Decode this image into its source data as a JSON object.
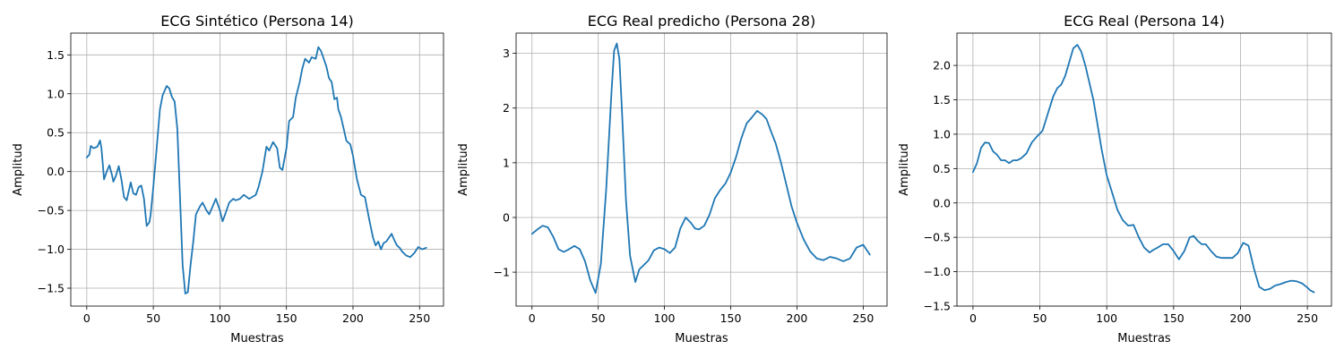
{
  "chart_data": [
    {
      "type": "line",
      "title": "ECG Sintético (Persona 14)",
      "xlabel": "Muestras",
      "ylabel": "Amplitud",
      "xlim": [
        -12,
        268
      ],
      "ylim": [
        -1.73,
        1.78
      ],
      "xticks": [
        0,
        50,
        100,
        150,
        200,
        250
      ],
      "yticks": [
        -1.5,
        -1.0,
        -0.5,
        0.0,
        0.5,
        1.0,
        1.5
      ],
      "ytick_labels": [
        "−1.5",
        "−1.0",
        "−0.5",
        "0.0",
        "0.5",
        "1.0",
        "1.5"
      ],
      "grid": true,
      "color": "#1f77b4",
      "series": [
        {
          "x": [
            0,
            2,
            3,
            5,
            8,
            10,
            11,
            12,
            13,
            15,
            17,
            19,
            20,
            22,
            24,
            26,
            28,
            30,
            33,
            35,
            37,
            39,
            41,
            43,
            45,
            47,
            48,
            50,
            52,
            55,
            57,
            60,
            62,
            64,
            66,
            68,
            70,
            72,
            74,
            76,
            78,
            80,
            82,
            85,
            87,
            90,
            92,
            94,
            97,
            100,
            102,
            104,
            107,
            110,
            112,
            115,
            118,
            122,
            125,
            127,
            129,
            132,
            135,
            137,
            140,
            143,
            145,
            147,
            150,
            152,
            155,
            157,
            160,
            162,
            164,
            167,
            169,
            172,
            174,
            176,
            178,
            180,
            182,
            184,
            186,
            188,
            189,
            191,
            193,
            195,
            196,
            198,
            200,
            203,
            206,
            209,
            212,
            215,
            217,
            219,
            221,
            223,
            225,
            227,
            229,
            231,
            233,
            235,
            237,
            240,
            243,
            246,
            249,
            252,
            255
          ],
          "y": [
            0.18,
            0.22,
            0.33,
            0.3,
            0.32,
            0.4,
            0.3,
            0.1,
            -0.1,
            0.0,
            0.08,
            -0.05,
            -0.13,
            -0.05,
            0.07,
            -0.1,
            -0.33,
            -0.37,
            -0.14,
            -0.28,
            -0.3,
            -0.2,
            -0.18,
            -0.35,
            -0.7,
            -0.65,
            -0.56,
            -0.2,
            0.2,
            0.8,
            0.98,
            1.1,
            1.07,
            0.96,
            0.9,
            0.55,
            -0.3,
            -1.2,
            -1.57,
            -1.55,
            -1.2,
            -0.9,
            -0.55,
            -0.45,
            -0.4,
            -0.5,
            -0.55,
            -0.47,
            -0.35,
            -0.5,
            -0.64,
            -0.55,
            -0.4,
            -0.35,
            -0.37,
            -0.35,
            -0.3,
            -0.35,
            -0.32,
            -0.3,
            -0.2,
            0.0,
            0.32,
            0.27,
            0.38,
            0.3,
            0.05,
            0.02,
            0.3,
            0.65,
            0.7,
            0.95,
            1.15,
            1.33,
            1.45,
            1.4,
            1.47,
            1.45,
            1.6,
            1.55,
            1.45,
            1.35,
            1.2,
            1.15,
            0.93,
            0.95,
            0.8,
            0.7,
            0.55,
            0.4,
            0.38,
            0.35,
            0.2,
            -0.1,
            -0.3,
            -0.33,
            -0.6,
            -0.85,
            -0.95,
            -0.9,
            -1.0,
            -0.92,
            -0.9,
            -0.85,
            -0.8,
            -0.88,
            -0.95,
            -0.98,
            -1.03,
            -1.08,
            -1.1,
            -1.05,
            -0.97,
            -1.0,
            -0.98
          ]
        }
      ]
    },
    {
      "type": "line",
      "title": "ECG Real predicho (Persona 28)",
      "xlabel": "Muestras",
      "ylabel": "Amplitud",
      "xlim": [
        -12,
        268
      ],
      "ylim": [
        -1.62,
        3.37
      ],
      "xticks": [
        0,
        50,
        100,
        150,
        200,
        250
      ],
      "yticks": [
        -1,
        0,
        1,
        2,
        3
      ],
      "ytick_labels": [
        "−1",
        "0",
        "1",
        "2",
        "3"
      ],
      "grid": true,
      "color": "#1f77b4",
      "series": [
        {
          "x": [
            0,
            4,
            8,
            12,
            16,
            20,
            24,
            28,
            32,
            36,
            40,
            44,
            48,
            52,
            56,
            60,
            62,
            64,
            66,
            68,
            71,
            74,
            78,
            81,
            84,
            88,
            92,
            96,
            100,
            104,
            108,
            112,
            116,
            120,
            123,
            126,
            130,
            134,
            138,
            142,
            146,
            150,
            154,
            158,
            162,
            166,
            170,
            174,
            177,
            180,
            184,
            188,
            192,
            196,
            200,
            205,
            210,
            215,
            220,
            225,
            230,
            235,
            240,
            245,
            250,
            255
          ],
          "y": [
            -0.3,
            -0.22,
            -0.15,
            -0.18,
            -0.35,
            -0.58,
            -0.63,
            -0.58,
            -0.52,
            -0.58,
            -0.8,
            -1.15,
            -1.38,
            -0.85,
            0.5,
            2.3,
            3.05,
            3.18,
            2.9,
            1.9,
            0.3,
            -0.7,
            -1.18,
            -0.95,
            -0.88,
            -0.78,
            -0.6,
            -0.55,
            -0.58,
            -0.65,
            -0.55,
            -0.2,
            0.0,
            -0.1,
            -0.2,
            -0.22,
            -0.15,
            0.05,
            0.35,
            0.5,
            0.62,
            0.82,
            1.1,
            1.45,
            1.72,
            1.83,
            1.95,
            1.88,
            1.8,
            1.6,
            1.35,
            1.0,
            0.6,
            0.2,
            -0.1,
            -0.4,
            -0.62,
            -0.75,
            -0.78,
            -0.72,
            -0.75,
            -0.8,
            -0.75,
            -0.55,
            -0.5,
            -0.68
          ]
        }
      ]
    },
    {
      "type": "line",
      "title": "ECG Real (Persona 14)",
      "xlabel": "Muestras",
      "ylabel": "Amplitud",
      "xlim": [
        -12,
        268
      ],
      "ylim": [
        -1.5,
        2.47
      ],
      "xticks": [
        0,
        50,
        100,
        150,
        200,
        250
      ],
      "yticks": [
        -1.5,
        -1.0,
        -0.5,
        0.0,
        0.5,
        1.0,
        1.5,
        2.0
      ],
      "ytick_labels": [
        "−1.5",
        "−1.0",
        "−0.5",
        "0.0",
        "0.5",
        "1.0",
        "1.5",
        "2.0"
      ],
      "grid": true,
      "color": "#1f77b4",
      "series": [
        {
          "x": [
            0,
            3,
            6,
            9,
            12,
            15,
            18,
            21,
            24,
            27,
            30,
            33,
            36,
            40,
            44,
            48,
            52,
            56,
            60,
            63,
            66,
            69,
            72,
            75,
            78,
            81,
            84,
            87,
            90,
            93,
            96,
            100,
            104,
            108,
            112,
            116,
            120,
            124,
            128,
            132,
            135,
            138,
            142,
            146,
            150,
            154,
            158,
            162,
            165,
            168,
            171,
            174,
            178,
            182,
            186,
            190,
            194,
            198,
            202,
            206,
            210,
            214,
            218,
            222,
            226,
            230,
            234,
            238,
            242,
            246,
            250,
            252,
            255
          ],
          "y": [
            0.45,
            0.58,
            0.8,
            0.88,
            0.87,
            0.75,
            0.7,
            0.62,
            0.62,
            0.58,
            0.62,
            0.62,
            0.65,
            0.72,
            0.88,
            0.97,
            1.05,
            1.3,
            1.55,
            1.67,
            1.72,
            1.85,
            2.05,
            2.25,
            2.3,
            2.2,
            2.0,
            1.75,
            1.5,
            1.15,
            0.8,
            0.4,
            0.15,
            -0.1,
            -0.25,
            -0.33,
            -0.32,
            -0.5,
            -0.65,
            -0.72,
            -0.68,
            -0.65,
            -0.6,
            -0.6,
            -0.7,
            -0.82,
            -0.7,
            -0.5,
            -0.48,
            -0.55,
            -0.6,
            -0.6,
            -0.7,
            -0.78,
            -0.8,
            -0.8,
            -0.8,
            -0.73,
            -0.58,
            -0.62,
            -0.95,
            -1.22,
            -1.27,
            -1.25,
            -1.2,
            -1.18,
            -1.15,
            -1.13,
            -1.14,
            -1.17,
            -1.23,
            -1.27,
            -1.3
          ]
        }
      ]
    }
  ]
}
